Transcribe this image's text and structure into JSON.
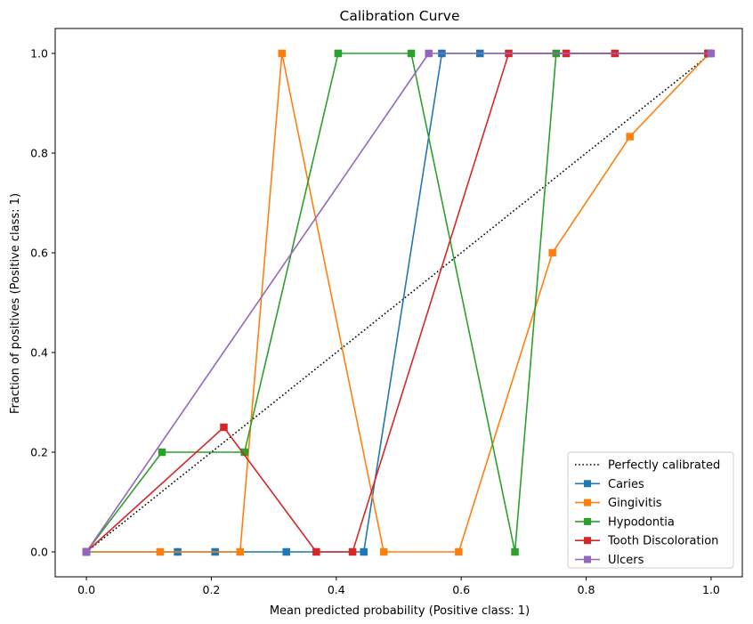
{
  "chart_data": {
    "type": "line",
    "title": "Calibration Curve",
    "xlabel": "Mean predicted probability (Positive class: 1)",
    "ylabel": "Fraction of positives (Positive class: 1)",
    "xlim": [
      -0.05,
      1.05
    ],
    "ylim": [
      -0.05,
      1.05
    ],
    "xticks": [
      "0.0",
      "0.2",
      "0.4",
      "0.6",
      "0.8",
      "1.0"
    ],
    "yticks": [
      "0.0",
      "0.2",
      "0.4",
      "0.6",
      "0.8",
      "1.0"
    ],
    "grid": false,
    "legend_position": "lower-right",
    "reference": {
      "name": "Perfectly calibrated",
      "x": [
        0,
        1
      ],
      "y": [
        0,
        1
      ],
      "color": "#000000",
      "style": "dotted"
    },
    "series": [
      {
        "name": "Caries",
        "color": "#1f77b4",
        "x": [
          0.0,
          0.146,
          0.206,
          0.32,
          0.444,
          0.569,
          0.63,
          0.997
        ],
        "y": [
          0.0,
          0.0,
          0.0,
          0.0,
          0.0,
          1.0,
          1.0,
          1.0
        ]
      },
      {
        "name": "Gingivitis",
        "color": "#ff7f0e",
        "x": [
          0.0,
          0.118,
          0.246,
          0.313,
          0.476,
          0.596,
          0.746,
          0.87,
          0.997
        ],
        "y": [
          0.0,
          0.0,
          0.0,
          1.0,
          0.0,
          0.0,
          0.6,
          0.833,
          1.0
        ]
      },
      {
        "name": "Hypodontia",
        "color": "#2ca02c",
        "x": [
          0.0,
          0.121,
          0.253,
          0.403,
          0.52,
          0.686,
          0.752,
          0.997
        ],
        "y": [
          0.0,
          0.2,
          0.2,
          1.0,
          1.0,
          0.0,
          1.0,
          1.0
        ]
      },
      {
        "name": "Tooth Discoloration",
        "color": "#d62728",
        "x": [
          0.0,
          0.22,
          0.368,
          0.426,
          0.676,
          0.768,
          0.846,
          0.995
        ],
        "y": [
          0.0,
          0.25,
          0.0,
          0.0,
          1.0,
          1.0,
          1.0,
          1.0
        ]
      },
      {
        "name": "Ulcers",
        "color": "#9467bd",
        "x": [
          0.0,
          0.548,
          1.0
        ],
        "y": [
          0.0,
          1.0,
          1.0
        ]
      }
    ]
  }
}
